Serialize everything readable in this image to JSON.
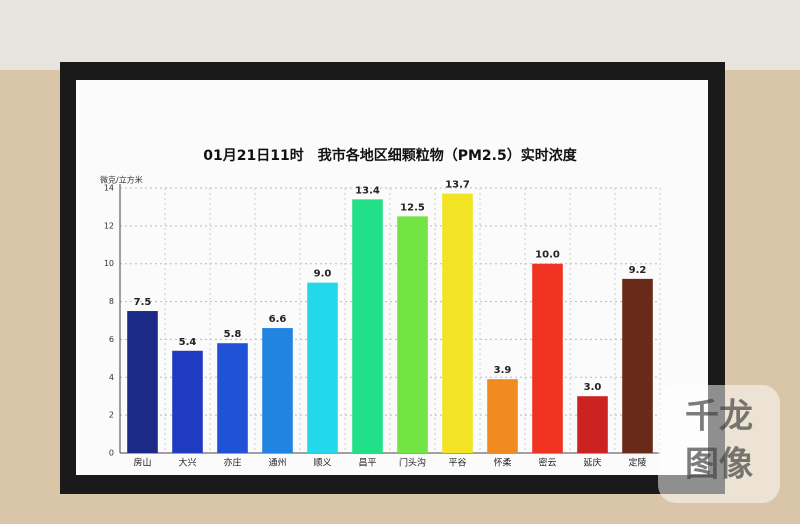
{
  "chart_data": {
    "type": "bar",
    "title": "01月21日11时　我市各地区细颗粒物（PM2.5）实时浓度",
    "y_label": "微克/立方米",
    "categories": [
      "房山",
      "大兴",
      "亦庄",
      "通州",
      "顺义",
      "昌平",
      "门头沟",
      "平谷",
      "怀柔",
      "密云",
      "延庆",
      "定陵"
    ],
    "values": [
      7.5,
      5.4,
      5.8,
      6.6,
      9.0,
      13.4,
      12.5,
      13.7,
      3.9,
      10.0,
      3.0,
      9.2
    ],
    "value_labels": [
      "7.5",
      "5.4",
      "5.8",
      "6.6",
      "9.0",
      "13.4",
      "12.5",
      "13.7",
      "3.9",
      "10.0",
      "3.0",
      "9.2"
    ],
    "colors": [
      "#1b2a86",
      "#1f3cc0",
      "#1f52d6",
      "#2184e0",
      "#22d8ea",
      "#22e088",
      "#72e444",
      "#f2e424",
      "#f28a22",
      "#f03222",
      "#cc2222",
      "#6a2a1a"
    ],
    "ylim": [
      0,
      14
    ],
    "yticks": [
      0,
      2,
      4,
      6,
      8,
      10,
      12,
      14
    ],
    "grid": true
  },
  "watermark": [
    "千龙",
    "图像"
  ]
}
